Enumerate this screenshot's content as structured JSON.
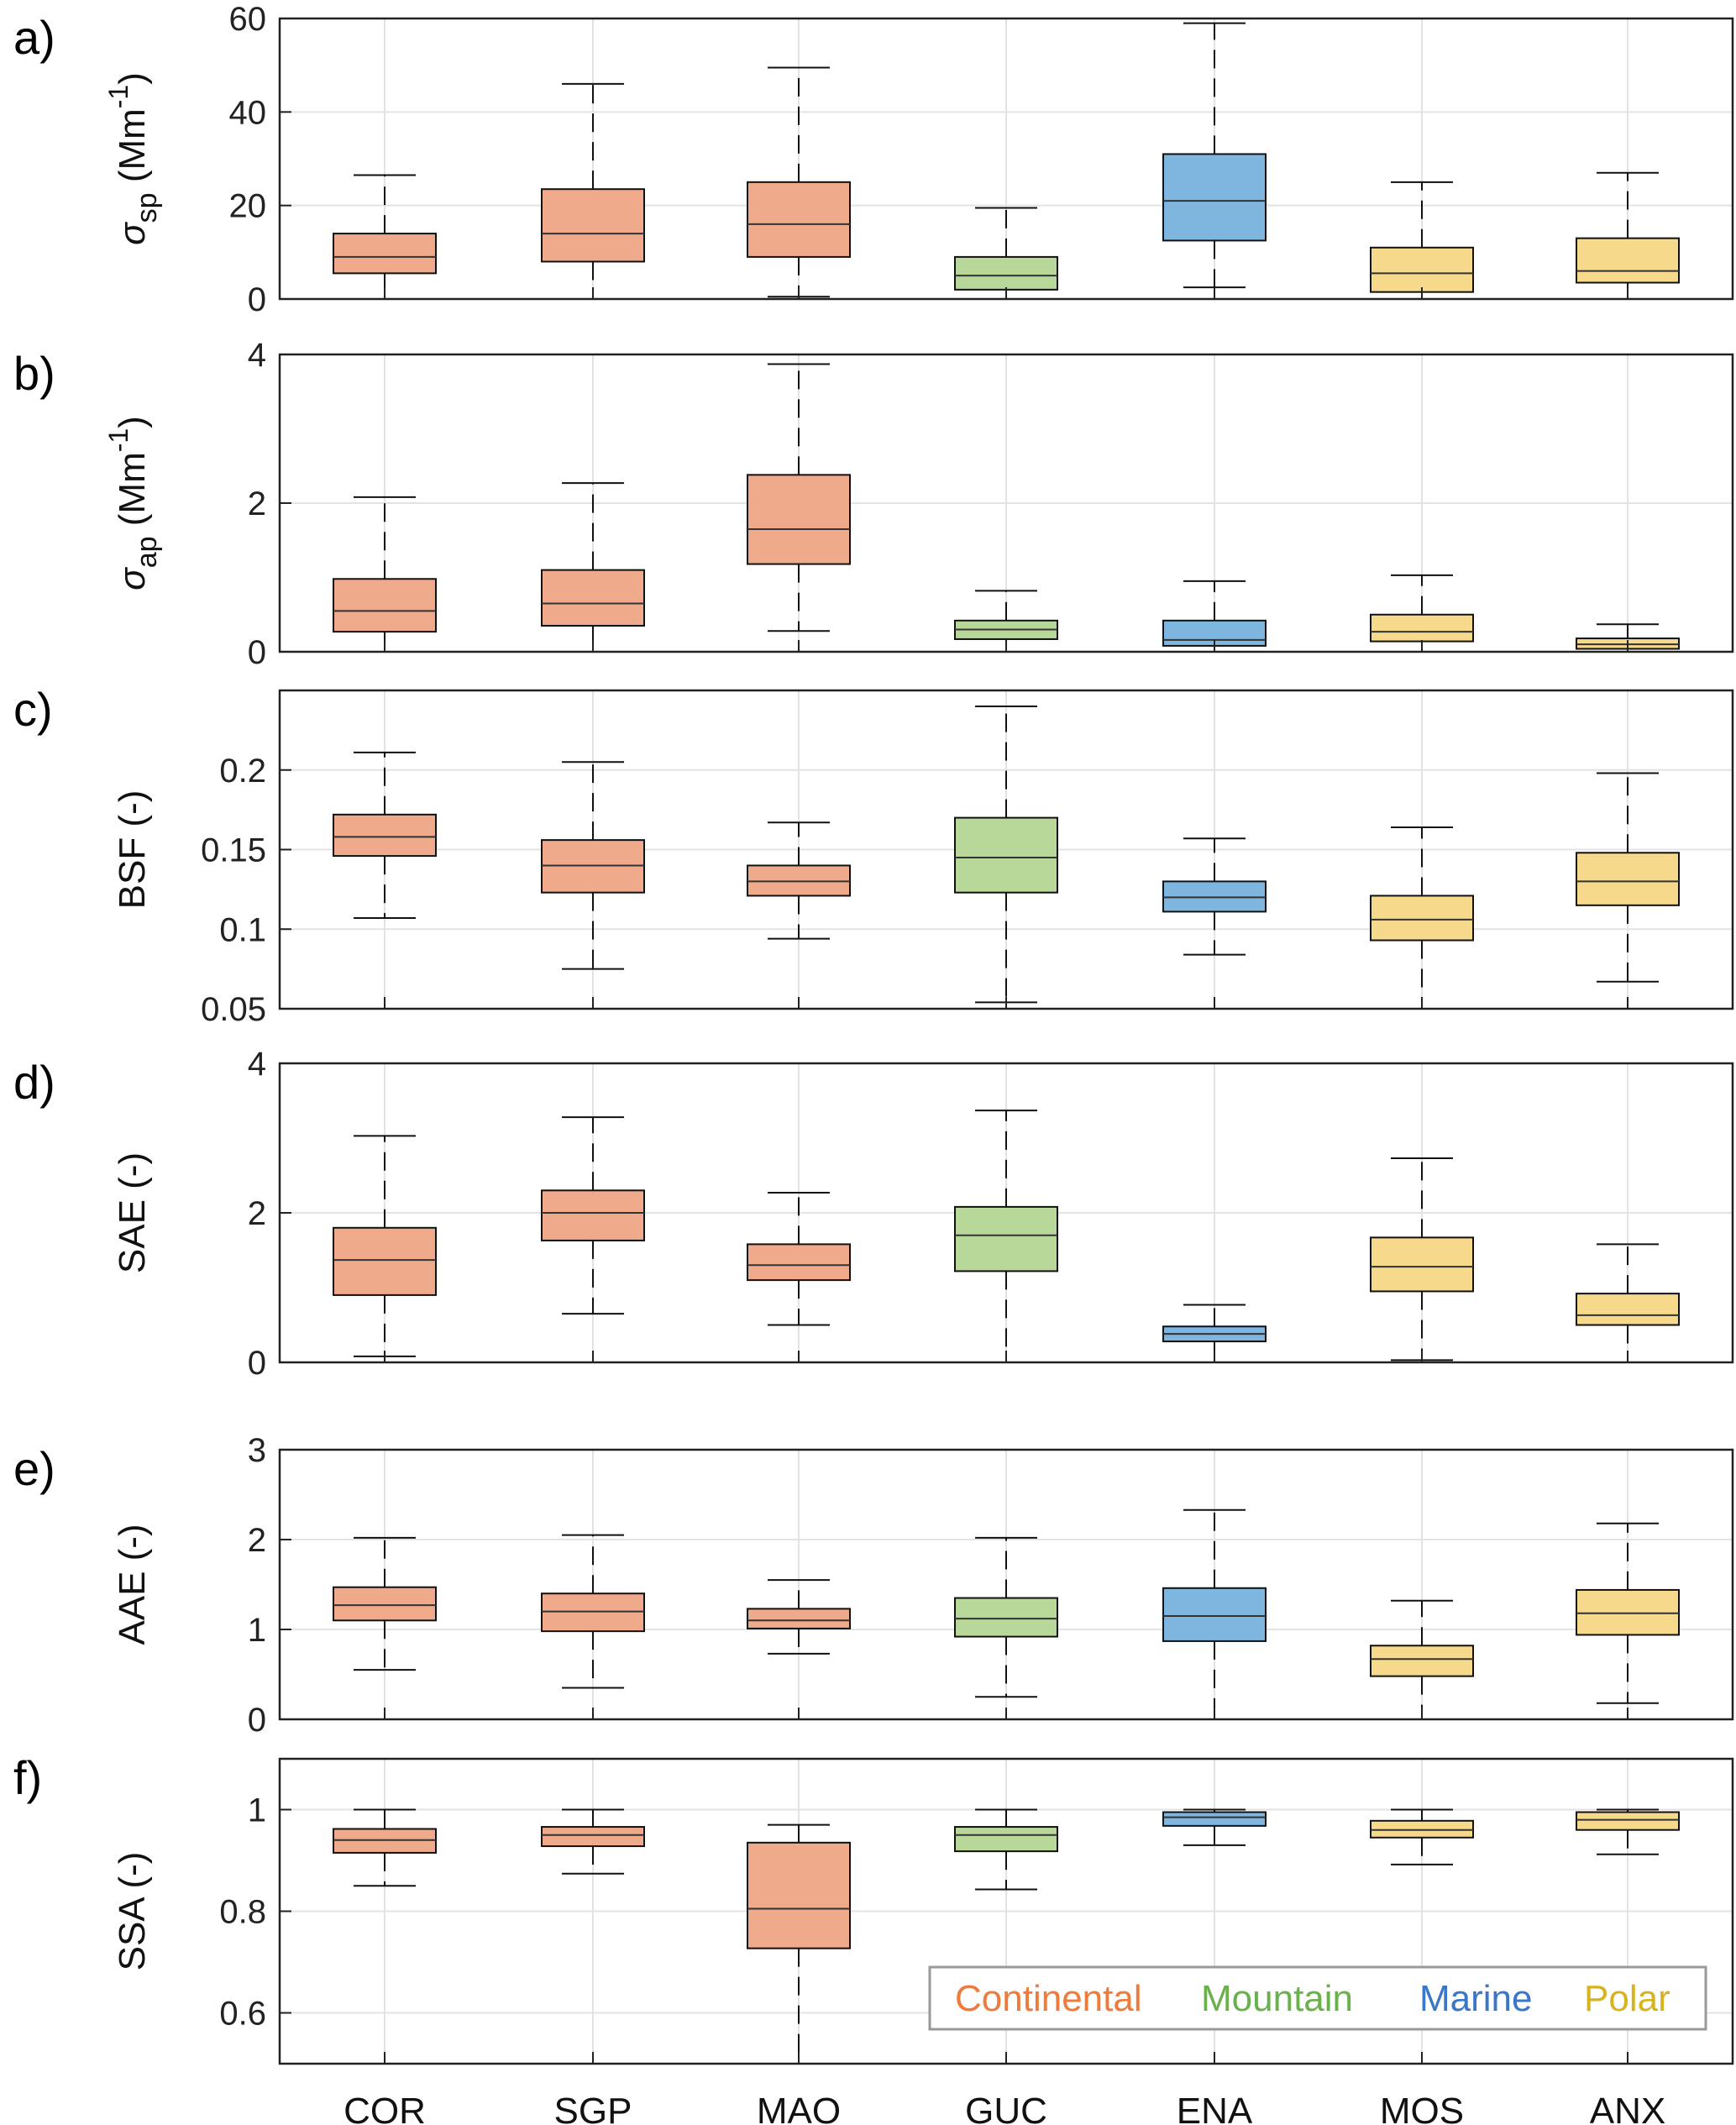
{
  "colors": {
    "Continental": "#eeaa8a",
    "Mountain": "#b8d89a",
    "Marine": "#7fb6e0",
    "Polar": "#f7d98c",
    "legend_Continental": "#ee7a3c",
    "legend_Mountain": "#6ab04c",
    "legend_Marine": "#3b77c8",
    "legend_Polar": "#d8b320"
  },
  "categories": [
    "COR",
    "SGP",
    "MAO",
    "GUC",
    "ENA",
    "MOS",
    "ANX"
  ],
  "category_groups": [
    "Continental",
    "Continental",
    "Continental",
    "Mountain",
    "Marine",
    "Polar",
    "Polar"
  ],
  "legend": [
    "Continental",
    "Mountain",
    "Marine",
    "Polar"
  ],
  "chart_data": [
    {
      "type": "box",
      "panel": "a)",
      "ylabel_parts": [
        "σ",
        "sp",
        " (Mm",
        "-1",
        ")"
      ],
      "ylim": [
        0,
        60
      ],
      "yticks": [
        0,
        20,
        40,
        60
      ],
      "ytick_labels": [
        "0",
        "20",
        "40",
        "60"
      ],
      "boxes": [
        {
          "category": "COR",
          "min": 0,
          "q1": 5.5,
          "median": 9,
          "q3": 14,
          "max": 26.5
        },
        {
          "category": "SGP",
          "min": 0,
          "q1": 8,
          "median": 14,
          "q3": 23.5,
          "max": 46
        },
        {
          "category": "MAO",
          "min": 0.5,
          "q1": 9,
          "median": 16,
          "q3": 25,
          "max": 49.5
        },
        {
          "category": "GUC",
          "min": 0,
          "q1": 2,
          "median": 5,
          "q3": 9,
          "max": 19.5
        },
        {
          "category": "ENA",
          "min": 2.5,
          "q1": 12.5,
          "median": 21,
          "q3": 31,
          "max": 59
        },
        {
          "category": "MOS",
          "min": 0,
          "q1": 1.5,
          "median": 5.5,
          "q3": 11,
          "max": 25
        },
        {
          "category": "ANX",
          "min": 0,
          "q1": 3.5,
          "median": 6,
          "q3": 13,
          "max": 27
        }
      ]
    },
    {
      "type": "box",
      "panel": "b)",
      "ylabel_parts": [
        "σ",
        "ap",
        " (Mm",
        "-1",
        ")"
      ],
      "ylim": [
        0,
        4
      ],
      "yticks": [
        0,
        2,
        4
      ],
      "ytick_labels": [
        "0",
        "2",
        "4"
      ],
      "boxes": [
        {
          "category": "COR",
          "min": 0,
          "q1": 0.27,
          "median": 0.55,
          "q3": 0.98,
          "max": 2.08
        },
        {
          "category": "SGP",
          "min": 0,
          "q1": 0.35,
          "median": 0.65,
          "q3": 1.1,
          "max": 2.27
        },
        {
          "category": "MAO",
          "min": 0.28,
          "q1": 1.18,
          "median": 1.65,
          "q3": 2.38,
          "max": 3.87
        },
        {
          "category": "GUC",
          "min": 0,
          "q1": 0.17,
          "median": 0.3,
          "q3": 0.42,
          "max": 0.82
        },
        {
          "category": "ENA",
          "min": 0,
          "q1": 0.08,
          "median": 0.16,
          "q3": 0.42,
          "max": 0.95
        },
        {
          "category": "MOS",
          "min": 0,
          "q1": 0.14,
          "median": 0.27,
          "q3": 0.5,
          "max": 1.03
        },
        {
          "category": "ANX",
          "min": 0,
          "q1": 0.04,
          "median": 0.1,
          "q3": 0.18,
          "max": 0.37
        }
      ]
    },
    {
      "type": "box",
      "panel": "c)",
      "ylabel_parts": [
        "BSF (-)"
      ],
      "ylim": [
        0.05,
        0.25
      ],
      "yticks": [
        0.05,
        0.1,
        0.15,
        0.2
      ],
      "ytick_labels": [
        "0.05",
        "0.1",
        "0.15",
        "0.2"
      ],
      "boxes": [
        {
          "category": "COR",
          "min": 0.107,
          "q1": 0.146,
          "median": 0.158,
          "q3": 0.172,
          "max": 0.211
        },
        {
          "category": "SGP",
          "min": 0.075,
          "q1": 0.123,
          "median": 0.14,
          "q3": 0.156,
          "max": 0.205
        },
        {
          "category": "MAO",
          "min": 0.094,
          "q1": 0.121,
          "median": 0.13,
          "q3": 0.14,
          "max": 0.167
        },
        {
          "category": "GUC",
          "min": 0.054,
          "q1": 0.123,
          "median": 0.145,
          "q3": 0.17,
          "max": 0.24
        },
        {
          "category": "ENA",
          "min": 0.084,
          "q1": 0.111,
          "median": 0.12,
          "q3": 0.13,
          "max": 0.157
        },
        {
          "category": "MOS",
          "min": 0.05,
          "q1": 0.093,
          "median": 0.106,
          "q3": 0.121,
          "max": 0.164
        },
        {
          "category": "ANX",
          "min": 0.067,
          "q1": 0.115,
          "median": 0.13,
          "q3": 0.148,
          "max": 0.198
        }
      ]
    },
    {
      "type": "box",
      "panel": "d)",
      "ylabel_parts": [
        "SAE (-)"
      ],
      "ylim": [
        0,
        4
      ],
      "yticks": [
        0,
        2,
        4
      ],
      "ytick_labels": [
        "0",
        "2",
        "4"
      ],
      "boxes": [
        {
          "category": "COR",
          "min": 0.08,
          "q1": 0.9,
          "median": 1.37,
          "q3": 1.8,
          "max": 3.03
        },
        {
          "category": "SGP",
          "min": 0.65,
          "q1": 1.63,
          "median": 2.0,
          "q3": 2.3,
          "max": 3.28
        },
        {
          "category": "MAO",
          "min": 0.5,
          "q1": 1.1,
          "median": 1.3,
          "q3": 1.58,
          "max": 2.27
        },
        {
          "category": "GUC",
          "min": 0,
          "q1": 1.22,
          "median": 1.7,
          "q3": 2.08,
          "max": 3.37
        },
        {
          "category": "ENA",
          "min": 0,
          "q1": 0.28,
          "median": 0.38,
          "q3": 0.48,
          "max": 0.77
        },
        {
          "category": "MOS",
          "min": 0.03,
          "q1": 0.95,
          "median": 1.28,
          "q3": 1.67,
          "max": 2.73
        },
        {
          "category": "ANX",
          "min": 0,
          "q1": 0.5,
          "median": 0.63,
          "q3": 0.92,
          "max": 1.58
        }
      ]
    },
    {
      "type": "box",
      "panel": "e)",
      "ylabel_parts": [
        "AAE (-)"
      ],
      "ylim": [
        0,
        3
      ],
      "yticks": [
        0,
        1,
        2,
        3
      ],
      "ytick_labels": [
        "0",
        "1",
        "2",
        "3"
      ],
      "boxes": [
        {
          "category": "COR",
          "min": 0.55,
          "q1": 1.1,
          "median": 1.27,
          "q3": 1.47,
          "max": 2.02
        },
        {
          "category": "SGP",
          "min": 0.35,
          "q1": 0.98,
          "median": 1.2,
          "q3": 1.4,
          "max": 2.05
        },
        {
          "category": "MAO",
          "min": 0.73,
          "q1": 1.01,
          "median": 1.1,
          "q3": 1.23,
          "max": 1.55
        },
        {
          "category": "GUC",
          "min": 0.25,
          "q1": 0.92,
          "median": 1.12,
          "q3": 1.35,
          "max": 2.02
        },
        {
          "category": "ENA",
          "min": 0,
          "q1": 0.87,
          "median": 1.15,
          "q3": 1.46,
          "max": 2.33
        },
        {
          "category": "MOS",
          "min": 0,
          "q1": 0.48,
          "median": 0.67,
          "q3": 0.82,
          "max": 1.32
        },
        {
          "category": "ANX",
          "min": 0.18,
          "q1": 0.94,
          "median": 1.18,
          "q3": 1.44,
          "max": 2.18
        }
      ]
    },
    {
      "type": "box",
      "panel": "f)",
      "ylabel_parts": [
        "SSA (-)"
      ],
      "ylim": [
        0.5,
        1.1
      ],
      "yticks": [
        0.6,
        0.8,
        1
      ],
      "ytick_labels": [
        "0.6",
        "0.8",
        "1"
      ],
      "boxes": [
        {
          "category": "COR",
          "min": 0.85,
          "q1": 0.915,
          "median": 0.94,
          "q3": 0.962,
          "max": 1.0
        },
        {
          "category": "SGP",
          "min": 0.874,
          "q1": 0.928,
          "median": 0.95,
          "q3": 0.966,
          "max": 1.0
        },
        {
          "category": "MAO",
          "min": 0.5,
          "q1": 0.727,
          "median": 0.805,
          "q3": 0.935,
          "max": 0.97
        },
        {
          "category": "GUC",
          "min": 0.843,
          "q1": 0.918,
          "median": 0.95,
          "q3": 0.966,
          "max": 1.0
        },
        {
          "category": "ENA",
          "min": 0.93,
          "q1": 0.968,
          "median": 0.985,
          "q3": 0.995,
          "max": 1.0
        },
        {
          "category": "MOS",
          "min": 0.892,
          "q1": 0.945,
          "median": 0.96,
          "q3": 0.978,
          "max": 1.0
        },
        {
          "category": "ANX",
          "min": 0.912,
          "q1": 0.96,
          "median": 0.98,
          "q3": 0.995,
          "max": 1.0
        }
      ]
    }
  ]
}
